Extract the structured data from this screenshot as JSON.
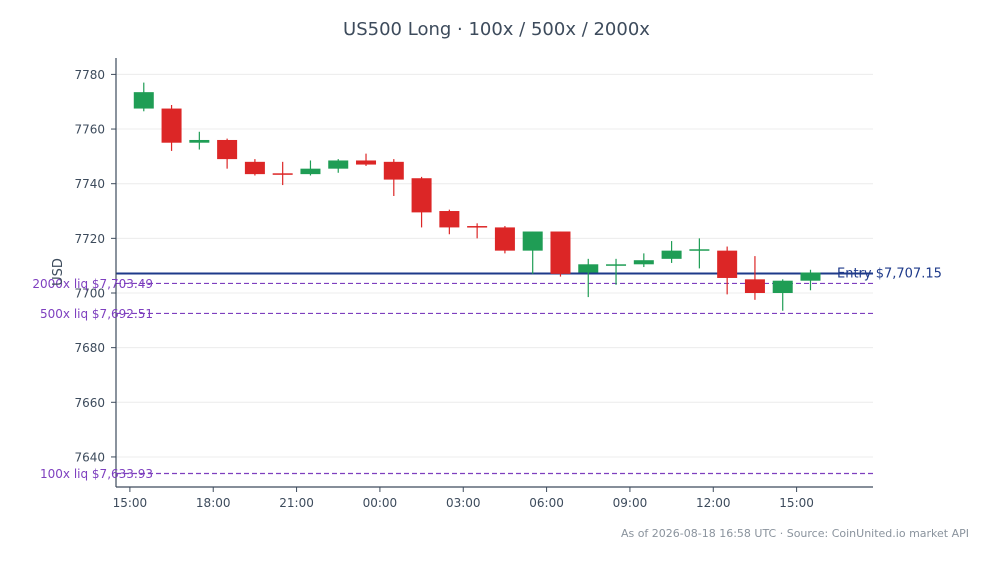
{
  "colors": {
    "up": "#1f9d55",
    "down": "#dc2626",
    "entry": "#1e3a8a",
    "liq": "#7e3fbf",
    "axis": "#3d4b5c",
    "grid": "#ececec"
  },
  "chart_data": {
    "type": "candlestick",
    "title": "US500 Long · 100x / 500x / 2000x",
    "ylabel": "USD",
    "xlabel": "",
    "ylim": [
      7629,
      7786
    ],
    "yticks": [
      7640,
      7660,
      7680,
      7700,
      7720,
      7740,
      7760,
      7780
    ],
    "xlim": [
      -1,
      26.25
    ],
    "xticks": [
      {
        "x": -0.5,
        "label": "15:00"
      },
      {
        "x": 2.5,
        "label": "18:00"
      },
      {
        "x": 5.5,
        "label": "21:00"
      },
      {
        "x": 8.5,
        "label": "00:00"
      },
      {
        "x": 11.5,
        "label": "03:00"
      },
      {
        "x": 14.5,
        "label": "06:00"
      },
      {
        "x": 17.5,
        "label": "09:00"
      },
      {
        "x": 20.5,
        "label": "12:00"
      },
      {
        "x": 23.5,
        "label": "15:00"
      }
    ],
    "grid": true,
    "candles": [
      {
        "o": 7767.5,
        "h": 7777.0,
        "l": 7766.5,
        "c": 7773.5
      },
      {
        "o": 7767.5,
        "h": 7768.8,
        "l": 7752.0,
        "c": 7755.0
      },
      {
        "o": 7755.0,
        "h": 7759.0,
        "l": 7752.5,
        "c": 7756.0
      },
      {
        "o": 7756.0,
        "h": 7756.5,
        "l": 7745.5,
        "c": 7749.0
      },
      {
        "o": 7748.0,
        "h": 7749.0,
        "l": 7743.0,
        "c": 7743.5
      },
      {
        "o": 7743.8,
        "h": 7748.0,
        "l": 7739.5,
        "c": 7743.5
      },
      {
        "o": 7743.5,
        "h": 7748.5,
        "l": 7743.0,
        "c": 7745.5
      },
      {
        "o": 7745.5,
        "h": 7749.0,
        "l": 7744.0,
        "c": 7748.5
      },
      {
        "o": 7748.5,
        "h": 7751.0,
        "l": 7746.5,
        "c": 7747.0
      },
      {
        "o": 7748.0,
        "h": 7749.0,
        "l": 7735.5,
        "c": 7741.5
      },
      {
        "o": 7742.0,
        "h": 7742.5,
        "l": 7724.0,
        "c": 7729.5
      },
      {
        "o": 7730.0,
        "h": 7730.5,
        "l": 7721.5,
        "c": 7724.0
      },
      {
        "o": 7724.5,
        "h": 7725.5,
        "l": 7720.0,
        "c": 7724.0
      },
      {
        "o": 7724.0,
        "h": 7724.5,
        "l": 7714.5,
        "c": 7715.5
      },
      {
        "o": 7715.5,
        "h": 7722.5,
        "l": 7707.0,
        "c": 7722.5
      },
      {
        "o": 7722.5,
        "h": 7722.5,
        "l": 7706.0,
        "c": 7707.0
      },
      {
        "o": 7707.5,
        "h": 7712.5,
        "l": 7698.5,
        "c": 7710.5
      },
      {
        "o": 7710.0,
        "h": 7712.5,
        "l": 7703.0,
        "c": 7710.5
      },
      {
        "o": 7710.5,
        "h": 7714.5,
        "l": 7709.5,
        "c": 7712.0
      },
      {
        "o": 7712.5,
        "h": 7719.0,
        "l": 7711.0,
        "c": 7715.5
      },
      {
        "o": 7715.5,
        "h": 7720.0,
        "l": 7709.0,
        "c": 7716.0
      },
      {
        "o": 7715.5,
        "h": 7717.0,
        "l": 7699.5,
        "c": 7705.5
      },
      {
        "o": 7705.0,
        "h": 7713.5,
        "l": 7697.5,
        "c": 7700.0
      },
      {
        "o": 7700.0,
        "h": 7705.0,
        "l": 7693.5,
        "c": 7704.5
      },
      {
        "o": 7704.5,
        "h": 7708.5,
        "l": 7701.0,
        "c": 7707.5
      }
    ],
    "lines": [
      {
        "name": "entry",
        "label": "Entry $7,707.15",
        "value": 7707.15,
        "style": "solid"
      },
      {
        "name": "liq-2000x",
        "label": "2000x liq $7,703.49",
        "value": 7703.49,
        "style": "dashed"
      },
      {
        "name": "liq-500x",
        "label": "500x liq $7,692.51",
        "value": 7692.51,
        "style": "dashed"
      },
      {
        "name": "liq-100x",
        "label": "100x liq $7,633.93",
        "value": 7633.93,
        "style": "dashed"
      }
    ]
  },
  "footer": "As of 2026-08-18 16:58 UTC · Source: CoinUnited.io market API"
}
